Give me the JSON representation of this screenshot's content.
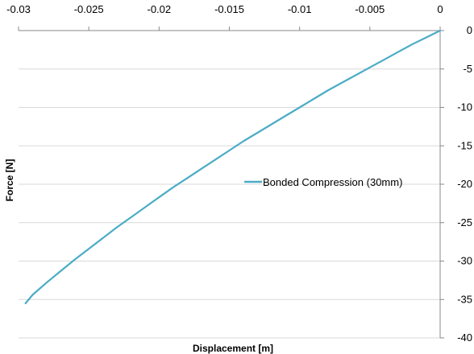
{
  "chart_data": {
    "type": "line",
    "title": "",
    "xlabel": "Displacement [m]",
    "ylabel": "Force [N]",
    "xlim": [
      -0.03,
      0
    ],
    "ylim": [
      -40,
      0
    ],
    "x_ticks": [
      -0.03,
      -0.025,
      -0.02,
      -0.015,
      -0.01,
      -0.005,
      0
    ],
    "x_tick_labels": [
      "-0.03",
      "-0.025",
      "-0.02",
      "-0.015",
      "-0.01",
      "-0.005",
      "0"
    ],
    "y_ticks": [
      0,
      -5,
      -10,
      -15,
      -20,
      -25,
      -30,
      -35,
      -40
    ],
    "y_tick_labels": [
      "0",
      "-5",
      "-10",
      "-15",
      "-20",
      "-25",
      "-30",
      "-35",
      "-40"
    ],
    "x_axis_position": "top",
    "y_axis_position": "right",
    "grid": "horizontal",
    "legend_position": "right",
    "series": [
      {
        "name": "Bonded Compression (30mm)",
        "color": "#4bacc6",
        "x": [
          0,
          -0.001,
          -0.002,
          -0.003,
          -0.004,
          -0.005,
          -0.006,
          -0.007,
          -0.008,
          -0.009,
          -0.01,
          -0.011,
          -0.012,
          -0.013,
          -0.014,
          -0.015,
          -0.016,
          -0.017,
          -0.018,
          -0.019,
          -0.02,
          -0.021,
          -0.022,
          -0.023,
          -0.024,
          -0.025,
          -0.026,
          -0.027,
          -0.028,
          -0.029,
          -0.0295
        ],
        "y": [
          0,
          -0.9,
          -1.8,
          -2.8,
          -3.8,
          -4.8,
          -5.8,
          -6.8,
          -7.8,
          -8.9,
          -10.0,
          -11.1,
          -12.2,
          -13.3,
          -14.4,
          -15.6,
          -16.8,
          -18.0,
          -19.2,
          -20.4,
          -21.7,
          -23.0,
          -24.3,
          -25.6,
          -27.0,
          -28.4,
          -29.8,
          -31.3,
          -32.8,
          -34.4,
          -35.5
        ]
      }
    ]
  }
}
